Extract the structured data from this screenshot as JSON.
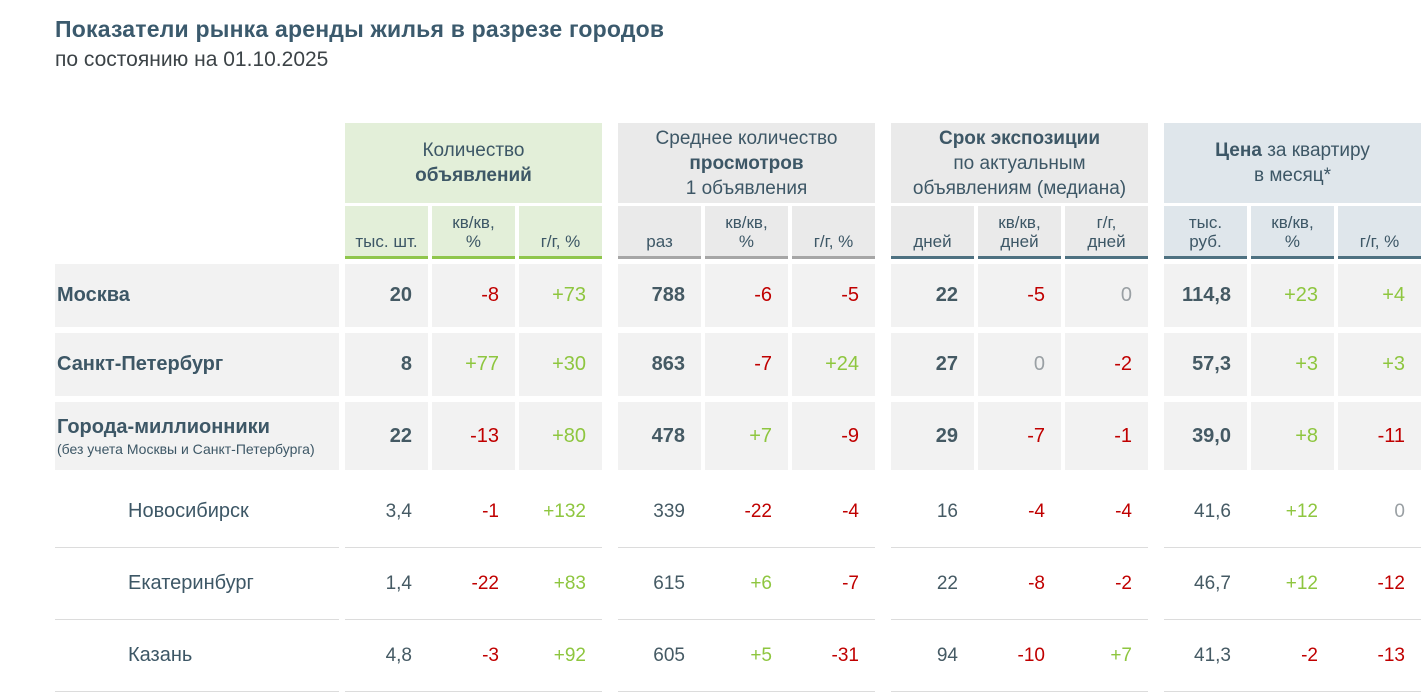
{
  "colors": {
    "title_color": "#3b5a6d",
    "subtitle_color": "#3c4347",
    "name_slate": "#3d5766",
    "dark_slate": "#455a64",
    "positive_green": "#8ec63f",
    "negative_red": "#c00000",
    "neutral_zero": "#9aa0a4",
    "row_bg": "#f2f2f2",
    "g1_bg": "#e3efd9",
    "g2_bg": "#eaeaea",
    "g4_bg": "#dfe6eb",
    "g1_border": "#8fc64c",
    "g2_border": "#a6a6a6",
    "teal_border": "#4e7181",
    "plain_border": "#dcdcdc"
  },
  "chart_data": {
    "type": "table",
    "title": "Показатели рынка аренды жилья в разрезе городов",
    "subtitle": "по состоянию на 01.10.2025",
    "groups": [
      {
        "label": "Количество объявлений",
        "line1": "Количество",
        "line2_bold": "объявлений",
        "cols": [
          "тыс. шт.",
          "кв/кв,\n%",
          "г/г, %"
        ]
      },
      {
        "label": "Среднее количество просмотров 1 объявления",
        "line1": "Среднее количество",
        "line2_bold": "просмотров",
        "line3": "1 объявления",
        "cols": [
          "раз",
          "кв/кв,\n%",
          "г/г, %"
        ]
      },
      {
        "label": "Срок экспозиции по актуальным объявлениям (медиана)",
        "line1_bold": "Срок экспозиции",
        "line2": "по актуальным",
        "line3": "объявлениям (медиана)",
        "cols": [
          "дней",
          "кв/кв,\nдней",
          "г/г,\nдней"
        ]
      },
      {
        "label": "Цена за квартиру в месяц*",
        "line1_bold": "Цена",
        "line1": "за квартиру",
        "line2": "в месяц*",
        "cols": [
          "тыс.\nруб.",
          "кв/кв,\n%",
          "г/г, %"
        ]
      }
    ],
    "rows": [
      {
        "name": "Москва",
        "emphasis": true,
        "cells": [
          "20",
          "-8",
          "+73",
          "788",
          "-6",
          "-5",
          "22",
          "-5",
          "0",
          "114,8",
          "+23",
          "+4"
        ]
      },
      {
        "name": "Санкт-Петербург",
        "emphasis": true,
        "cells": [
          "8",
          "+77",
          "+30",
          "863",
          "-7",
          "+24",
          "27",
          "0",
          "-2",
          "57,3",
          "+3",
          "+3"
        ]
      },
      {
        "name": "Города-миллионники",
        "note": "(без учета Москвы и Санкт-Петербурга)",
        "emphasis": true,
        "cells": [
          "22",
          "-13",
          "+80",
          "478",
          "+7",
          "-9",
          "29",
          "-7",
          "-1",
          "39,0",
          "+8",
          "-11"
        ]
      },
      {
        "name": "Новосибирск",
        "emphasis": false,
        "cells": [
          "3,4",
          "-1",
          "+132",
          "339",
          "-22",
          "-4",
          "16",
          "-4",
          "-4",
          "41,6",
          "+12",
          "0"
        ]
      },
      {
        "name": "Екатеринбург",
        "emphasis": false,
        "cells": [
          "1,4",
          "-22",
          "+83",
          "615",
          "+6",
          "-7",
          "22",
          "-8",
          "-2",
          "46,7",
          "+12",
          "-12"
        ]
      },
      {
        "name": "Казань",
        "emphasis": false,
        "cells": [
          "4,8",
          "-3",
          "+92",
          "605",
          "+5",
          "-31",
          "94",
          "-10",
          "+7",
          "41,3",
          "-2",
          "-13"
        ]
      }
    ]
  }
}
